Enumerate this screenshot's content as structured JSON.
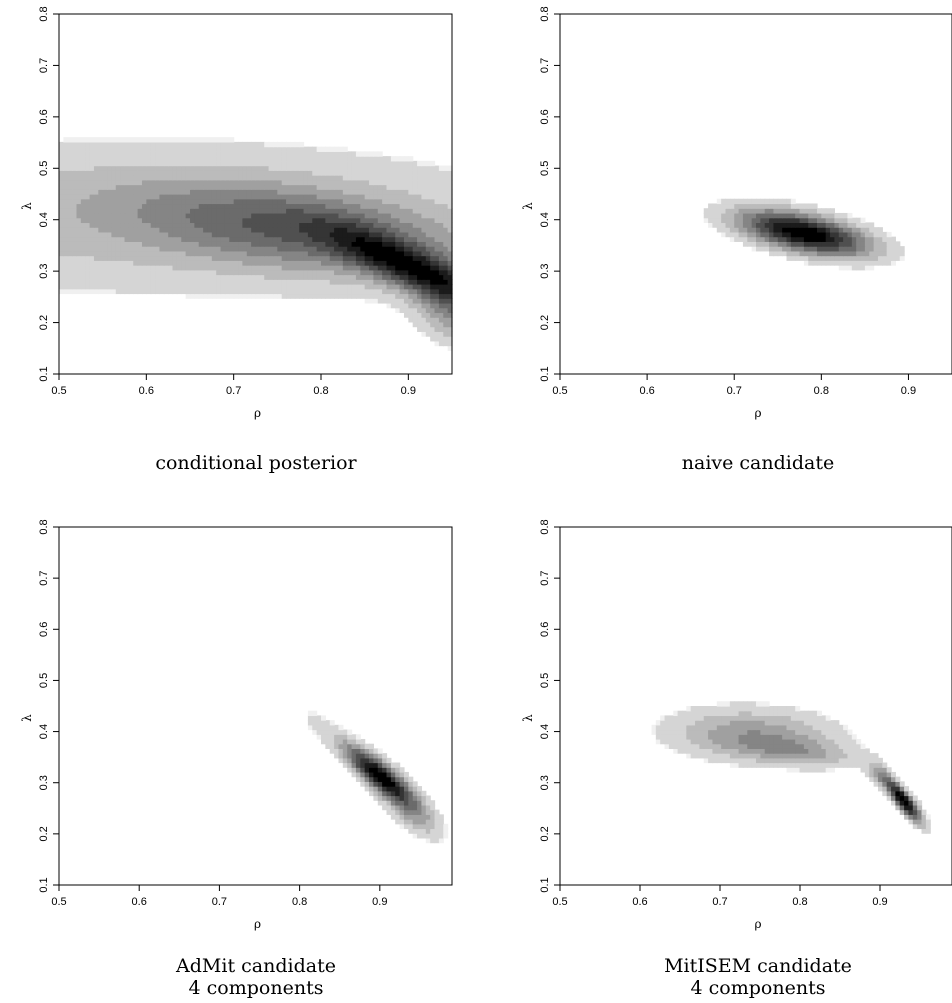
{
  "chart_data": [
    {
      "type": "heatmap",
      "caption": [
        "conditional posterior"
      ],
      "xlabel": "ρ",
      "ylabel": "λ",
      "xlim": [
        0.5,
        0.95
      ],
      "ylim": [
        0.1,
        0.8
      ],
      "xticks": [
        "0.5",
        "0.6",
        "0.7",
        "0.8",
        "0.9"
      ],
      "yticks": [
        "0.1",
        "0.2",
        "0.3",
        "0.4",
        "0.5",
        "0.6",
        "0.7",
        "0.8"
      ],
      "density": [
        {
          "mx": 0.6,
          "my": 0.405,
          "sx": 0.3,
          "sy": 0.1,
          "rho": 0.0,
          "w": 0.18
        },
        {
          "mx": 0.78,
          "my": 0.38,
          "sx": 0.13,
          "sy": 0.06,
          "rho": -0.45,
          "w": 0.35
        },
        {
          "mx": 0.9,
          "my": 0.31,
          "sx": 0.06,
          "sy": 0.05,
          "rho": -0.8,
          "w": 0.55
        },
        {
          "mx": 0.95,
          "my": 0.235,
          "sx": 0.03,
          "sy": 0.05,
          "rho": -0.3,
          "w": 0.3
        }
      ]
    },
    {
      "type": "heatmap",
      "caption": [
        "naive candidate"
      ],
      "xlabel": "ρ",
      "ylabel": "λ",
      "xlim": [
        0.5,
        0.95
      ],
      "ylim": [
        0.1,
        0.8
      ],
      "xticks": [
        "0.5",
        "0.6",
        "0.7",
        "0.8",
        "0.9"
      ],
      "yticks": [
        "0.1",
        "0.2",
        "0.3",
        "0.4",
        "0.5",
        "0.6",
        "0.7",
        "0.8"
      ],
      "density": [
        {
          "mx": 0.78,
          "my": 0.375,
          "sx": 0.05,
          "sy": 0.03,
          "rho": -0.55,
          "w": 1.0
        }
      ]
    },
    {
      "type": "heatmap",
      "caption": [
        "AdMit candidate",
        "4 components"
      ],
      "xlabel": "ρ",
      "ylabel": "λ",
      "xlim": [
        0.5,
        0.99
      ],
      "ylim": [
        0.1,
        0.8
      ],
      "xticks": [
        "0.5",
        "0.6",
        "0.7",
        "0.8",
        "0.9"
      ],
      "yticks": [
        "0.1",
        "0.2",
        "0.3",
        "0.4",
        "0.5",
        "0.6",
        "0.7",
        "0.8"
      ],
      "density": [
        {
          "mx": 0.72,
          "my": 0.385,
          "sx": 0.035,
          "sy": 0.012,
          "rho": 0.0,
          "w": 0.05
        },
        {
          "mx": 0.9,
          "my": 0.315,
          "sx": 0.03,
          "sy": 0.04,
          "rho": -0.85,
          "w": 0.8
        },
        {
          "mx": 0.94,
          "my": 0.24,
          "sx": 0.025,
          "sy": 0.035,
          "rho": -0.7,
          "w": 0.2
        },
        {
          "mx": 0.82,
          "my": 0.42,
          "sx": 0.02,
          "sy": 0.03,
          "rho": -0.5,
          "w": 0.06
        }
      ]
    },
    {
      "type": "heatmap",
      "caption": [
        "MitISEM candidate",
        "4 components"
      ],
      "xlabel": "ρ",
      "ylabel": "λ",
      "xlim": [
        0.5,
        0.99
      ],
      "ylim": [
        0.1,
        0.8
      ],
      "xticks": [
        "0.5",
        "0.6",
        "0.7",
        "0.8",
        "0.9"
      ],
      "yticks": [
        "0.1",
        "0.2",
        "0.3",
        "0.4",
        "0.5",
        "0.6",
        "0.7",
        "0.8"
      ],
      "density": [
        {
          "mx": 0.74,
          "my": 0.395,
          "sx": 0.07,
          "sy": 0.035,
          "rho": -0.1,
          "w": 0.15
        },
        {
          "mx": 0.93,
          "my": 0.265,
          "sx": 0.015,
          "sy": 0.028,
          "rho": -0.85,
          "w": 0.45
        },
        {
          "mx": 0.9,
          "my": 0.315,
          "sx": 0.012,
          "sy": 0.018,
          "rho": -0.5,
          "w": 0.12
        },
        {
          "mx": 0.8,
          "my": 0.36,
          "sx": 0.05,
          "sy": 0.02,
          "rho": -0.4,
          "w": 0.1
        }
      ]
    }
  ]
}
